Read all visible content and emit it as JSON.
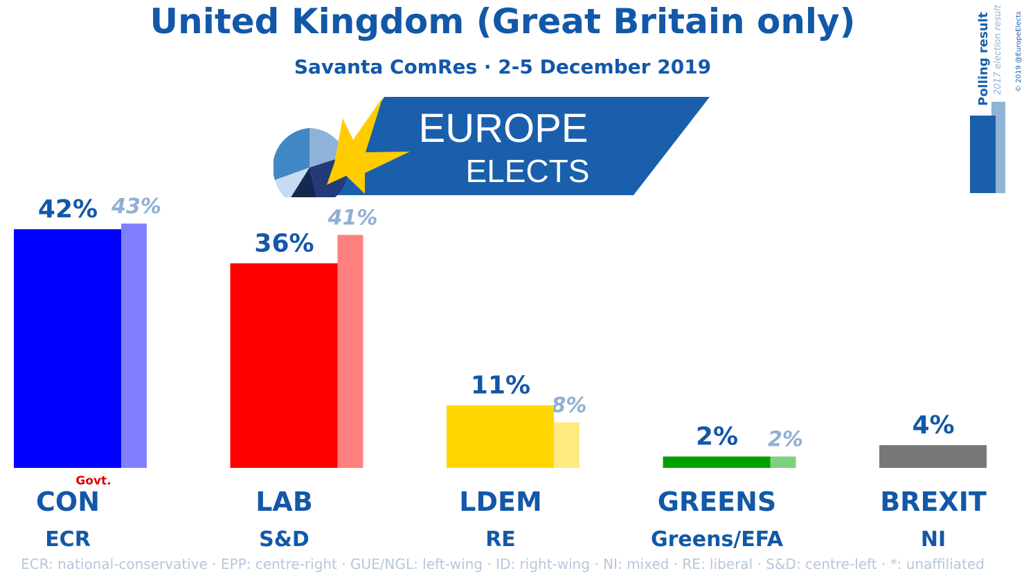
{
  "title": "United Kingdom (Great Britain only)",
  "subtitle": "Savanta ComRes · 2-5 December 2019",
  "logo": {
    "line1": "EUROPE",
    "line2": "ELECTS"
  },
  "legend": {
    "polling": "Polling result",
    "election": "2017 election result",
    "copyright": "© 2019 @EuropeElects"
  },
  "footnote": "ECR: national-conservative · EPP: centre-right · GUE/NGL: left-wing · ID: right-wing · NI: mixed · RE: liberal · S&D: centre-left · *: unaffiliated",
  "chart_data": {
    "type": "bar",
    "title": "United Kingdom (Great Britain only)",
    "subtitle": "Savanta ComRes · 2-5 December 2019",
    "ylim": [
      0,
      43
    ],
    "categories": [
      "CON",
      "LAB",
      "LDEM",
      "GREENS",
      "BREXIT"
    ],
    "groups": [
      "ECR",
      "S&D",
      "RE",
      "Greens/EFA",
      "NI"
    ],
    "series": [
      {
        "name": "Polling result",
        "values": [
          42,
          36,
          11,
          2,
          4
        ],
        "labels": [
          "42%",
          "36%",
          "11%",
          "2%",
          "4%"
        ]
      },
      {
        "name": "2017 election result",
        "values": [
          43,
          41,
          8,
          2,
          null
        ],
        "labels": [
          "43%",
          "41%",
          "8%",
          "2%",
          ""
        ]
      }
    ],
    "colors": [
      "#0000ff",
      "#ff0000",
      "#ffd700",
      "#00a000",
      "#777777"
    ],
    "colors_2017": [
      "#8080ff",
      "#ff8080",
      "#ffea80",
      "#7fd07f",
      ""
    ],
    "annotation": {
      "category": "CON",
      "text": "Govt."
    }
  }
}
